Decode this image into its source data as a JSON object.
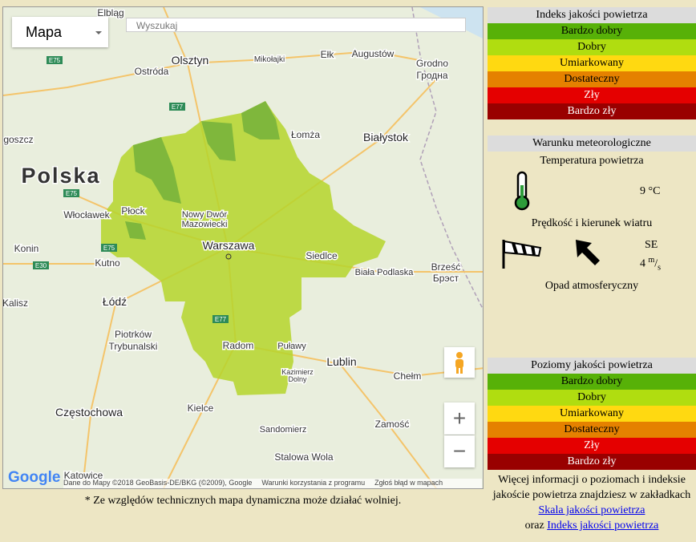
{
  "map": {
    "type_selector": "Mapa",
    "search_placeholder": "Wyszukaj",
    "places": [
      "Elbląg",
      "Olsztyn",
      "Ostróda",
      "Mikołajki",
      "Ełk",
      "Augustów",
      "Grodno",
      "Гродна",
      "Łomża",
      "Białystok",
      "goszcz",
      "Polska",
      "Włocławek",
      "Płock",
      "Nowy Dwór",
      "Mazowiecki",
      "Warszawa",
      "Siedlce",
      "Biała Podlaska",
      "Brześć",
      "Брэст",
      "Konin",
      "Kutno",
      "Kalisz",
      "Łódź",
      "Piotrków",
      "Trybunalski",
      "Radom",
      "Puławy",
      "Kazimierz",
      "Dolny",
      "Lublin",
      "Chełm",
      "Kielce",
      "Częstochowa",
      "Zamość",
      "Sandomierz",
      "Stalowa Wola",
      "Katowice"
    ],
    "roads": [
      "E75",
      "E77",
      "E75",
      "E75",
      "E30",
      "E77"
    ],
    "logo": "Google",
    "attribution": "Dane do Mapy ©2018 GeoBasis-DE/BKG (©2009), Google",
    "terms": "Warunki korzystania z programu",
    "report": "Zgłoś błąd w mapach",
    "zoom_in": "+",
    "zoom_out": "−"
  },
  "note": "* Ze względów technicznych mapa dynamiczna może działać wolniej.",
  "aqi_index": {
    "title": "Indeks jakości powietrza",
    "levels": [
      {
        "name": "Bardzo dobry",
        "color": "#57b108",
        "text_color": "#000000"
      },
      {
        "name": "Dobry",
        "color": "#b0dd10",
        "text_color": "#000000"
      },
      {
        "name": "Umiarkowany",
        "color": "#ffd911",
        "text_color": "#000000"
      },
      {
        "name": "Dostateczny",
        "color": "#e58100",
        "text_color": "#000000"
      },
      {
        "name": "Zły",
        "color": "#e50000",
        "text_color": "#ffffff"
      },
      {
        "name": "Bardzo zły",
        "color": "#990000",
        "text_color": "#ffffff"
      }
    ]
  },
  "weather": {
    "title": "Warunku meteorologiczne",
    "temperature_label": "Temperatura powietrza",
    "temperature": "9 °C",
    "wind_label": "Prędkość i kierunek wiatru",
    "wind_direction": "SE",
    "wind_speed": "4",
    "wind_unit_top": "m",
    "wind_unit_bottom": "s",
    "precipitation_label": "Opad atmosferyczny"
  },
  "aqi_levels": {
    "title": "Poziomy jakości powietrza",
    "levels": [
      {
        "name": "Bardzo dobry",
        "color": "#57b108",
        "text_color": "#000000"
      },
      {
        "name": "Dobry",
        "color": "#b0dd10",
        "text_color": "#000000"
      },
      {
        "name": "Umiarkowany",
        "color": "#ffd911",
        "text_color": "#000000"
      },
      {
        "name": "Dostateczny",
        "color": "#e58100",
        "text_color": "#000000"
      },
      {
        "name": "Zły",
        "color": "#e50000",
        "text_color": "#ffffff"
      },
      {
        "name": "Bardzo zły",
        "color": "#990000",
        "text_color": "#ffffff"
      }
    ]
  },
  "info": {
    "text": "Więcej informacji o poziomach i indeksie jakoście powietrza znajdziesz w zakładkach",
    "link1": "Skala jakości powietrza",
    "conjunction": "oraz",
    "link2": "Indeks jakości powietrza"
  }
}
